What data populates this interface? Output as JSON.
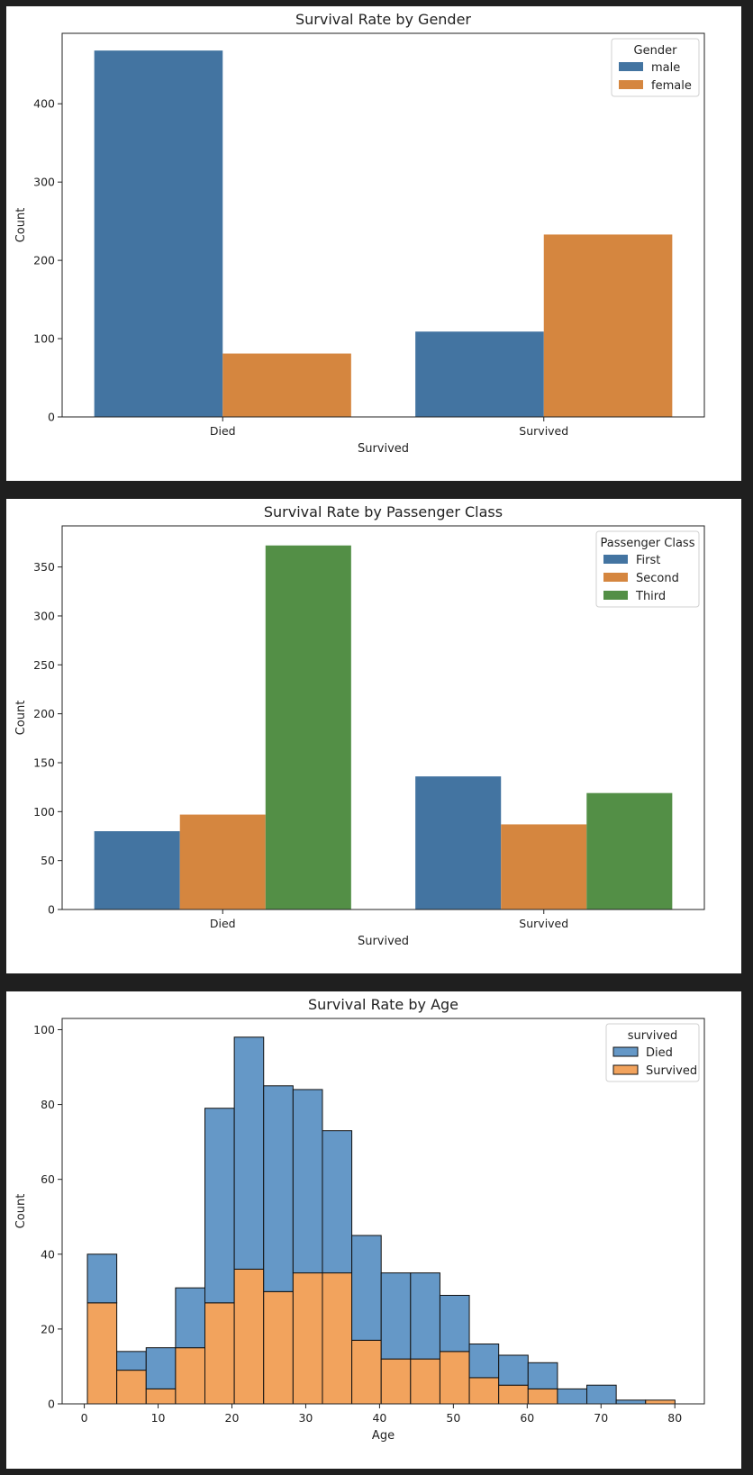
{
  "colors": {
    "blue": "#4374a1",
    "orange": "#d5863f",
    "green": "#538f46",
    "hist_blue": "#6598c7",
    "hist_orange": "#f2a35d"
  },
  "chart_data": [
    {
      "type": "bar",
      "title": "Survival Rate by Gender",
      "xlabel": "Survived",
      "ylabel": "Count",
      "categories": [
        "Died",
        "Survived"
      ],
      "legend_title": "Gender",
      "legend_position": "top-right",
      "ylim": [
        0,
        490
      ],
      "yticks": [
        0,
        100,
        200,
        300,
        400
      ],
      "series": [
        {
          "name": "male",
          "color": "#4374a1",
          "values": [
            468,
            109
          ]
        },
        {
          "name": "female",
          "color": "#d5863f",
          "values": [
            81,
            233
          ]
        }
      ]
    },
    {
      "type": "bar",
      "title": "Survival Rate by Passenger Class",
      "xlabel": "Survived",
      "ylabel": "Count",
      "categories": [
        "Died",
        "Survived"
      ],
      "legend_title": "Passenger Class",
      "legend_position": "top-right",
      "ylim": [
        0,
        392
      ],
      "yticks": [
        0,
        50,
        100,
        150,
        200,
        250,
        300,
        350
      ],
      "series": [
        {
          "name": "First",
          "color": "#4374a1",
          "values": [
            80,
            136
          ]
        },
        {
          "name": "Second",
          "color": "#d5863f",
          "values": [
            97,
            87
          ]
        },
        {
          "name": "Third",
          "color": "#538f46",
          "values": [
            372,
            119
          ]
        }
      ]
    },
    {
      "type": "histogram",
      "stacked": true,
      "title": "Survival Rate by Age",
      "xlabel": "Age",
      "ylabel": "Count",
      "legend_title": "survived",
      "legend_position": "top-right",
      "xlim": [
        -3,
        84
      ],
      "ylim": [
        0,
        103
      ],
      "xticks": [
        0,
        10,
        20,
        30,
        40,
        50,
        60,
        70,
        80
      ],
      "yticks": [
        0,
        20,
        40,
        60,
        80,
        100
      ],
      "bin_start": 0.42,
      "bin_width": 3.98,
      "series": [
        {
          "name": "Died",
          "color": "#6598c7",
          "values": [
            13,
            5,
            11,
            16,
            52,
            62,
            55,
            49,
            38,
            28,
            23,
            23,
            15,
            9,
            8,
            7,
            4,
            5,
            1,
            0
          ]
        },
        {
          "name": "Survived",
          "color": "#f2a35d",
          "values": [
            27,
            9,
            4,
            15,
            27,
            36,
            30,
            35,
            35,
            17,
            12,
            12,
            14,
            7,
            5,
            4,
            0,
            0,
            0,
            1
          ]
        }
      ],
      "totals": [
        40,
        14,
        15,
        31,
        79,
        98,
        85,
        84,
        73,
        45,
        35,
        35,
        29,
        16,
        13,
        11,
        4,
        5,
        1,
        1
      ]
    }
  ]
}
